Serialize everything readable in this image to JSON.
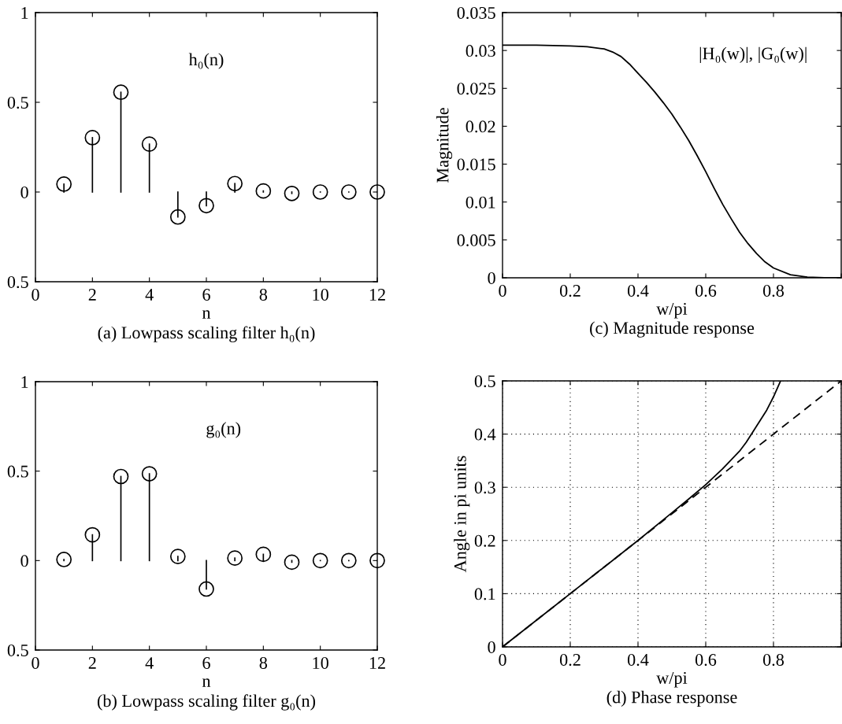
{
  "chart_data": [
    {
      "type": "lollipop",
      "title": "(a) Lowpass scaling filter h₀(n)",
      "xlabel": "n",
      "annotations": [
        "h₀(n)"
      ],
      "x": [
        1,
        2,
        3,
        4,
        5,
        6,
        7,
        8,
        9,
        10,
        11,
        12
      ],
      "series": [
        {
          "color": "#000000",
          "values": [
            0.044,
            0.303,
            0.556,
            0.267,
            -0.139,
            -0.076,
            0.047,
            0.006,
            -0.008,
            0.0,
            0.0,
            0.0
          ]
        }
      ],
      "marker": "circle",
      "xlim": [
        0,
        12
      ],
      "xticks": [
        0,
        2,
        4,
        6,
        8,
        10,
        12
      ],
      "ylim": [
        -0.5,
        1
      ],
      "yticks": [
        {
          "value": -0.5,
          "label": "0.5"
        },
        0,
        0.5,
        1
      ]
    },
    {
      "type": "lollipop",
      "title": "(b) Lowpass scaling filter g₀(n)",
      "xlabel": "n",
      "annotations": [
        "g₀(n)"
      ],
      "x": [
        1,
        2,
        3,
        4,
        5,
        6,
        7,
        8,
        9,
        10,
        11,
        12
      ],
      "series": [
        {
          "color": "#000000",
          "values": [
            0.006,
            0.144,
            0.47,
            0.485,
            0.023,
            -0.159,
            0.014,
            0.035,
            -0.009,
            0.0,
            0.0,
            0.0
          ]
        }
      ],
      "marker": "circle",
      "xlim": [
        0,
        12
      ],
      "xticks": [
        0,
        2,
        4,
        6,
        8,
        10,
        12
      ],
      "ylim": [
        -0.5,
        1
      ],
      "yticks": [
        {
          "value": -0.5,
          "label": "0.5"
        },
        0,
        0.5,
        1
      ]
    },
    {
      "type": "line",
      "title": "(c) Magnitude response",
      "xlabel": "w/pi",
      "ylabel": "Magnitude",
      "annotations": [
        "|H₀(w)|, |G₀(w)|"
      ],
      "x": [
        0,
        0.1,
        0.2,
        0.25,
        0.3,
        0.325,
        0.35,
        0.375,
        0.4,
        0.425,
        0.45,
        0.475,
        0.5,
        0.525,
        0.55,
        0.575,
        0.6,
        0.625,
        0.65,
        0.675,
        0.7,
        0.725,
        0.75,
        0.775,
        0.8,
        0.85,
        0.9,
        0.95,
        1.0
      ],
      "series": [
        {
          "color": "#000000",
          "values": [
            0.0307,
            0.0307,
            0.0306,
            0.0305,
            0.0302,
            0.0298,
            0.0292,
            0.0282,
            0.027,
            0.0258,
            0.0245,
            0.0231,
            0.0216,
            0.0199,
            0.0181,
            0.0161,
            0.014,
            0.0118,
            0.0097,
            0.0078,
            0.006,
            0.0045,
            0.0032,
            0.0021,
            0.0013,
            0.0004,
            0.0001,
            0.0,
            0.0
          ]
        }
      ],
      "xlim": [
        0,
        1
      ],
      "xticks": [
        0,
        0.2,
        0.4,
        0.6,
        0.8,
        {
          "value": 1,
          "label": null
        }
      ],
      "ylim": [
        0,
        0.035
      ],
      "yticks": [
        0,
        0.005,
        0.01,
        0.015,
        0.02,
        0.025,
        0.03,
        0.035
      ]
    },
    {
      "type": "line",
      "title": "(d) Phase response",
      "xlabel": "w/pi",
      "ylabel": "Angle in pi units",
      "series": [
        {
          "color": "#000000",
          "line_style": "solid",
          "x": [
            0,
            0.2,
            0.4,
            0.5,
            0.55,
            0.6,
            0.65,
            0.7,
            0.72,
            0.75,
            0.78,
            0.8,
            0.821
          ],
          "values": [
            0,
            0.1,
            0.2,
            0.252,
            0.278,
            0.305,
            0.335,
            0.368,
            0.385,
            0.415,
            0.445,
            0.47,
            0.5
          ]
        },
        {
          "color": "#000000",
          "line_style": "dashed",
          "x": [
            0,
            1
          ],
          "values": [
            0,
            0.5
          ]
        }
      ],
      "grid": true,
      "xlim": [
        0,
        1
      ],
      "xticks": [
        0,
        0.2,
        0.4,
        0.6,
        0.8,
        {
          "value": 1,
          "label": null
        }
      ],
      "ylim": [
        0,
        0.5
      ],
      "yticks": [
        0,
        0.1,
        0.2,
        0.3,
        0.4,
        0.5
      ]
    }
  ]
}
